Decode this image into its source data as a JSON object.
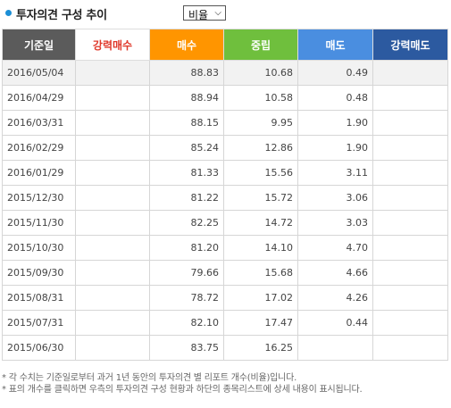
{
  "header": {
    "title": "투자의견 구성 추이",
    "select_value": "비율"
  },
  "colors": {
    "date_header": "#5b5b5b",
    "strong_buy_header": "#ffffff",
    "buy_header": "#ff9500",
    "hold_header": "#6fbf3d",
    "sell_header": "#4a8ee0",
    "strong_sell_header": "#2c5aa0"
  },
  "table": {
    "columns": [
      "기준일",
      "강력매수",
      "매수",
      "중립",
      "매도",
      "강력매도"
    ],
    "rows": [
      [
        "2016/05/04",
        "",
        "88.83",
        "10.68",
        "0.49",
        ""
      ],
      [
        "2016/04/29",
        "",
        "88.94",
        "10.58",
        "0.48",
        ""
      ],
      [
        "2016/03/31",
        "",
        "88.15",
        "9.95",
        "1.90",
        ""
      ],
      [
        "2016/02/29",
        "",
        "85.24",
        "12.86",
        "1.90",
        ""
      ],
      [
        "2016/01/29",
        "",
        "81.33",
        "15.56",
        "3.11",
        ""
      ],
      [
        "2015/12/30",
        "",
        "81.22",
        "15.72",
        "3.06",
        ""
      ],
      [
        "2015/11/30",
        "",
        "82.25",
        "14.72",
        "3.03",
        ""
      ],
      [
        "2015/10/30",
        "",
        "81.20",
        "14.10",
        "4.70",
        ""
      ],
      [
        "2015/09/30",
        "",
        "79.66",
        "15.68",
        "4.66",
        ""
      ],
      [
        "2015/08/31",
        "",
        "78.72",
        "17.02",
        "4.26",
        ""
      ],
      [
        "2015/07/31",
        "",
        "82.10",
        "17.47",
        "0.44",
        ""
      ],
      [
        "2015/06/30",
        "",
        "83.75",
        "16.25",
        "",
        ""
      ]
    ]
  },
  "notes": [
    "* 각 수치는 기준일로부터 과거 1년 동안의 투자의견 별 리포트 개수(비율)입니다.",
    "* 표의 개수를 클릭하면 우측의 투자의견 구성 현황과 하단의 종목리스트에 상세 내용이 표시됩니다."
  ]
}
